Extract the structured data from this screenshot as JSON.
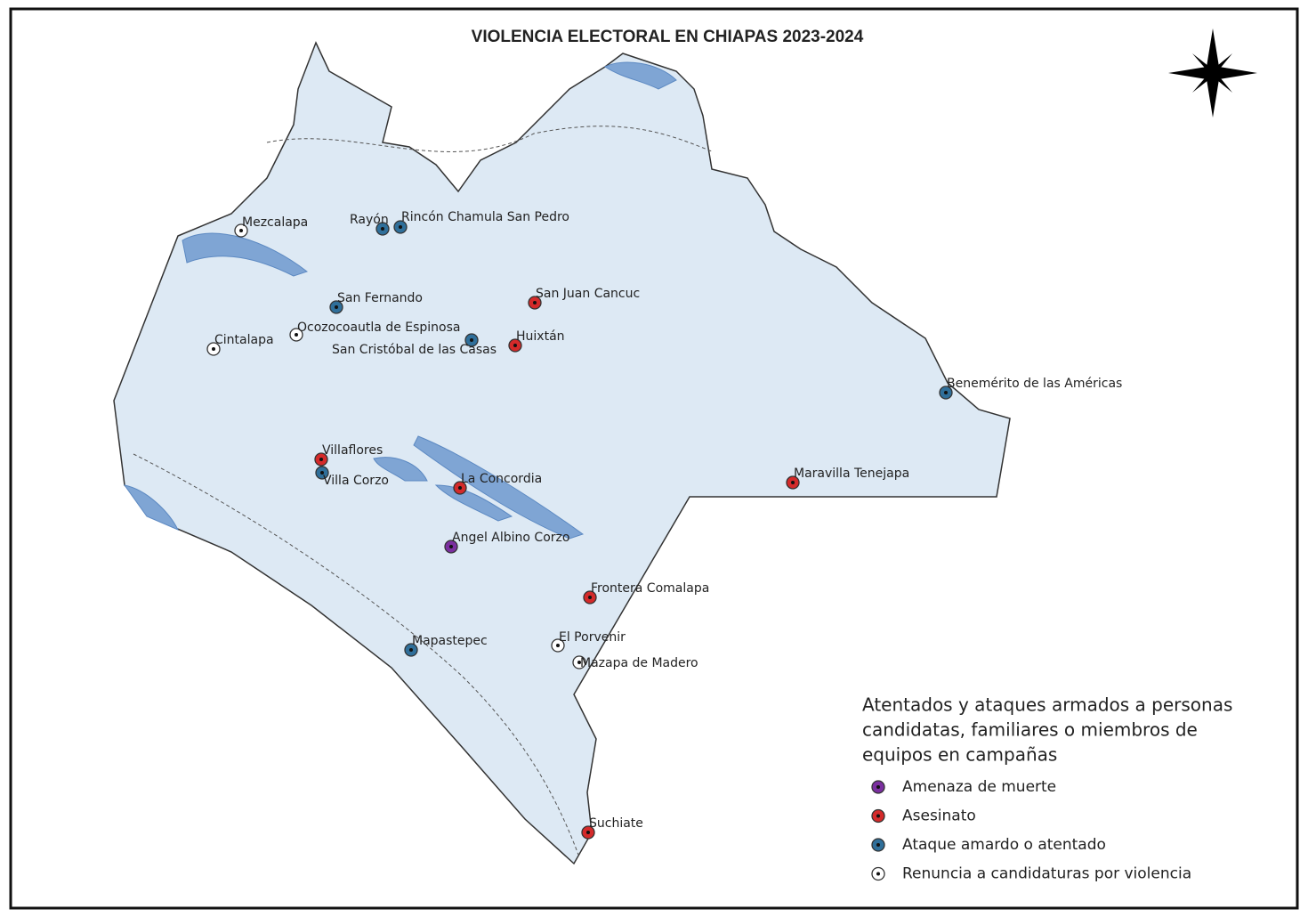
{
  "title": "VIOLENCIA ELECTORAL EN CHIAPAS 2023-2024",
  "legend": {
    "title_lines": [
      "Atentados y ataques armados a personas",
      "candidatas, familiares o miembros de",
      "equipos en campañas"
    ],
    "items": [
      {
        "label": "Amenaza de muerte",
        "color": "#7b2fa0",
        "places": [
          "Angel Albino Corzo"
        ]
      },
      {
        "label": "Asesinato",
        "color": "#d42a2a",
        "places": [
          "San Juan Cancuc",
          "Huixtán",
          "Villaflores",
          "La Concordia",
          "Maravilla Tenejapa",
          "Frontera Comalapa",
          "Suchiate"
        ]
      },
      {
        "label": "Ataque amardo o atentado",
        "color": "#2f6f9a",
        "places": [
          "Rayón",
          "Rincón Chamula San Pedro",
          "San Fernando",
          "San Cristóbal de las Casas",
          "Benemérito de las Américas",
          "Villa Corzo",
          "Mapastepec"
        ]
      },
      {
        "label": "Renuncia a candidaturas por violencia",
        "color": "#ffffff",
        "places": [
          "Mezcalapa",
          "Ocozocoautla de Espinosa",
          "Cintalapa",
          "El Porvenir",
          "Mazapa de Madero"
        ]
      }
    ]
  }
}
